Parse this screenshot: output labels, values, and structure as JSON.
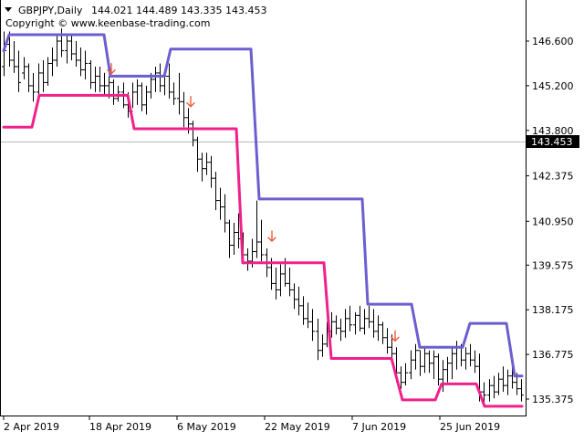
{
  "header": {
    "arrow_icon": "triangle-down-icon",
    "symbol": "GBPJPY,Daily",
    "ohlc": "144.021 144.489 143.335 143.453",
    "copyright": "Copyright © www.keenbase-trading.com"
  },
  "chart_data": {
    "type": "line",
    "y_axis": {
      "ticks": [
        146.6,
        145.2,
        143.8,
        142.375,
        140.95,
        139.575,
        138.175,
        136.775,
        135.375
      ],
      "range": [
        134.8,
        148.1
      ],
      "side": "right"
    },
    "x_axis": {
      "labels": [
        "2 Apr 2019",
        "18 Apr 2019",
        "6 May 2019",
        "22 May 2019",
        "7 Jun 2019",
        "25 Jun 2019"
      ]
    },
    "current_price": "143.453",
    "colors": {
      "upper": "#6b5fd0",
      "lower": "#f0208c",
      "arrows": "#f25a3a",
      "bars": "#000000"
    },
    "series": [
      {
        "role": "upper-channel",
        "color": "#6b5fd0",
        "points": [
          [
            4,
            146.3
          ],
          [
            10,
            146.8
          ],
          [
            62,
            146.8
          ],
          [
            114,
            146.8
          ],
          [
            121,
            145.5
          ],
          [
            180,
            145.5
          ],
          [
            187,
            146.35
          ],
          [
            275,
            146.35
          ],
          [
            284,
            141.65
          ],
          [
            397,
            141.65
          ],
          [
            403,
            138.35
          ],
          [
            451,
            138.35
          ],
          [
            460,
            137.0
          ],
          [
            507,
            137.0
          ],
          [
            515,
            137.75
          ],
          [
            555,
            137.75
          ],
          [
            564,
            136.1
          ],
          [
            572,
            136.1
          ]
        ]
      },
      {
        "role": "lower-channel",
        "color": "#f0208c",
        "points": [
          [
            4,
            143.9
          ],
          [
            35,
            143.9
          ],
          [
            43,
            144.9
          ],
          [
            140,
            144.9
          ],
          [
            147,
            143.85
          ],
          [
            259,
            143.85
          ],
          [
            266,
            139.65
          ],
          [
            355,
            139.65
          ],
          [
            363,
            136.65
          ],
          [
            429,
            136.65
          ],
          [
            441,
            135.35
          ],
          [
            477,
            135.35
          ],
          [
            484,
            135.85
          ],
          [
            522,
            135.85
          ],
          [
            531,
            135.15
          ],
          [
            572,
            135.15
          ]
        ]
      }
    ],
    "bars": [
      [
        4,
        145.5,
        146.9,
        145.8,
        146.3
      ],
      [
        10,
        145.8,
        146.9,
        146.5,
        146.0
      ],
      [
        15,
        145.6,
        146.6,
        146.0,
        145.8
      ],
      [
        20,
        145.0,
        146.3,
        145.8,
        145.3
      ],
      [
        26,
        145.4,
        146.1,
        145.6,
        145.8
      ],
      [
        31,
        145.0,
        145.9,
        145.8,
        145.2
      ],
      [
        36,
        144.7,
        145.6,
        145.2,
        145.0
      ],
      [
        42,
        144.9,
        145.9,
        145.0,
        145.6
      ],
      [
        47,
        145.0,
        146.0,
        145.6,
        145.3
      ],
      [
        52,
        145.2,
        146.1,
        145.3,
        145.9
      ],
      [
        57,
        145.5,
        146.4,
        145.9,
        146.0
      ],
      [
        62,
        145.8,
        146.8,
        146.0,
        146.6
      ],
      [
        67,
        146.1,
        147.0,
        146.6,
        146.3
      ],
      [
        73,
        145.9,
        146.8,
        146.3,
        146.6
      ],
      [
        78,
        146.0,
        146.8,
        146.6,
        146.2
      ],
      [
        83,
        145.8,
        146.6,
        146.2,
        146.0
      ],
      [
        88,
        145.5,
        146.4,
        146.0,
        145.7
      ],
      [
        93,
        145.4,
        146.3,
        145.7,
        145.9
      ],
      [
        99,
        145.1,
        146.0,
        145.9,
        145.3
      ],
      [
        104,
        145.0,
        145.8,
        145.3,
        145.5
      ],
      [
        109,
        145.0,
        145.8,
        145.5,
        145.2
      ],
      [
        114,
        144.9,
        145.6,
        145.2,
        145.2
      ],
      [
        119,
        144.8,
        145.5,
        145.2,
        145.3
      ],
      [
        124,
        144.6,
        145.4,
        145.3,
        144.8
      ],
      [
        129,
        144.7,
        145.2,
        144.8,
        145.0
      ],
      [
        135,
        144.5,
        145.3,
        145.0,
        144.6
      ],
      [
        140,
        144.2,
        145.0,
        144.6,
        144.4
      ],
      [
        145,
        144.5,
        145.3,
        144.4,
        145.0
      ],
      [
        150,
        144.6,
        145.4,
        145.0,
        145.2
      ],
      [
        155,
        144.4,
        145.3,
        145.2,
        144.6
      ],
      [
        160,
        144.3,
        145.2,
        144.6,
        145.0
      ],
      [
        165,
        144.8,
        145.6,
        145.0,
        145.4
      ],
      [
        170,
        145.0,
        145.8,
        145.4,
        145.6
      ],
      [
        175,
        145.0,
        145.9,
        145.6,
        145.2
      ],
      [
        180,
        144.9,
        145.7,
        145.2,
        145.5
      ],
      [
        185,
        144.8,
        145.9,
        145.5,
        145.0
      ],
      [
        190,
        144.6,
        145.3,
        145.0,
        144.8
      ],
      [
        196,
        144.3,
        145.6,
        144.8,
        144.7
      ],
      [
        201,
        143.9,
        145.0,
        144.7,
        144.2
      ],
      [
        206,
        143.7,
        144.5,
        144.2,
        144.0
      ],
      [
        211,
        143.3,
        144.1,
        144.0,
        143.5
      ],
      [
        216,
        142.5,
        143.6,
        143.5,
        142.9
      ],
      [
        221,
        142.2,
        143.1,
        142.9,
        142.6
      ],
      [
        226,
        142.4,
        143.1,
        142.6,
        142.8
      ],
      [
        231,
        142.0,
        143.0,
        142.8,
        142.3
      ],
      [
        236,
        141.3,
        142.5,
        142.3,
        141.6
      ],
      [
        241,
        141.0,
        142.0,
        141.6,
        141.4
      ],
      [
        246,
        140.6,
        141.8,
        141.4,
        140.9
      ],
      [
        251,
        139.8,
        141.0,
        140.9,
        140.2
      ],
      [
        256,
        139.9,
        140.9,
        140.2,
        140.6
      ],
      [
        261,
        140.1,
        141.2,
        140.6,
        140.4
      ],
      [
        266,
        139.6,
        140.6,
        140.4,
        139.9
      ],
      [
        271,
        139.4,
        140.1,
        139.9,
        139.7
      ],
      [
        276,
        139.5,
        140.4,
        139.7,
        140.0
      ],
      [
        281,
        139.8,
        141.6,
        140.0,
        140.3
      ],
      [
        286,
        139.7,
        141.0,
        140.3,
        139.9
      ],
      [
        292,
        139.2,
        140.1,
        139.9,
        139.5
      ],
      [
        297,
        138.8,
        139.8,
        139.5,
        139.0
      ],
      [
        302,
        138.5,
        139.5,
        139.0,
        138.8
      ],
      [
        307,
        138.6,
        139.6,
        138.8,
        139.3
      ],
      [
        312,
        138.9,
        139.8,
        139.3,
        139.0
      ],
      [
        317,
        138.6,
        139.5,
        139.0,
        138.8
      ],
      [
        322,
        138.2,
        139.0,
        138.8,
        138.5
      ],
      [
        327,
        138.0,
        138.9,
        138.5,
        138.3
      ],
      [
        332,
        137.7,
        138.6,
        138.3,
        137.9
      ],
      [
        337,
        137.6,
        138.4,
        137.9,
        137.8
      ],
      [
        342,
        137.2,
        138.2,
        137.8,
        137.5
      ],
      [
        348,
        136.6,
        137.9,
        137.5,
        136.9
      ],
      [
        353,
        136.7,
        137.4,
        136.9,
        137.1
      ],
      [
        358,
        137.0,
        137.8,
        137.1,
        137.5
      ],
      [
        363,
        137.3,
        138.1,
        137.5,
        137.8
      ],
      [
        368,
        137.4,
        138.0,
        137.8,
        137.6
      ],
      [
        373,
        137.2,
        137.9,
        137.6,
        137.5
      ],
      [
        378,
        137.3,
        138.2,
        137.5,
        137.9
      ],
      [
        383,
        137.5,
        138.3,
        137.9,
        137.7
      ],
      [
        389,
        137.4,
        138.1,
        137.7,
        138.0
      ],
      [
        394,
        137.5,
        138.3,
        138.0,
        137.6
      ],
      [
        399,
        137.4,
        138.2,
        137.6,
        137.9
      ],
      [
        404,
        137.6,
        138.3,
        137.9,
        137.8
      ],
      [
        409,
        137.3,
        138.2,
        137.8,
        137.5
      ],
      [
        414,
        137.2,
        138.0,
        137.5,
        137.7
      ],
      [
        419,
        137.1,
        137.8,
        137.7,
        137.3
      ],
      [
        424,
        136.8,
        137.6,
        137.3,
        137.0
      ],
      [
        429,
        136.5,
        137.4,
        137.0,
        136.8
      ],
      [
        434,
        135.9,
        137.0,
        136.8,
        136.2
      ],
      [
        439,
        135.7,
        136.4,
        136.2,
        135.9
      ],
      [
        444,
        135.8,
        136.5,
        135.9,
        136.2
      ],
      [
        450,
        136.0,
        136.9,
        136.2,
        136.6
      ],
      [
        455,
        136.3,
        137.1,
        136.6,
        136.9
      ],
      [
        460,
        136.1,
        136.9,
        136.9,
        136.4
      ],
      [
        465,
        136.2,
        137.0,
        136.4,
        136.8
      ],
      [
        470,
        136.2,
        136.9,
        136.8,
        136.5
      ],
      [
        475,
        136.0,
        136.9,
        136.5,
        136.7
      ],
      [
        480,
        135.8,
        136.8,
        136.7,
        136.0
      ],
      [
        485,
        135.6,
        136.6,
        136.0,
        136.3
      ],
      [
        490,
        135.9,
        136.7,
        136.3,
        136.5
      ],
      [
        495,
        136.0,
        137.0,
        136.5,
        136.8
      ],
      [
        500,
        136.3,
        137.2,
        136.8,
        137.0
      ],
      [
        505,
        136.4,
        137.1,
        137.0,
        136.6
      ],
      [
        510,
        136.3,
        137.0,
        136.6,
        136.8
      ],
      [
        515,
        136.4,
        137.1,
        136.8,
        136.6
      ],
      [
        520,
        136.2,
        136.9,
        136.6,
        136.4
      ],
      [
        525,
        135.3,
        136.8,
        136.4,
        135.6
      ],
      [
        530,
        135.2,
        135.9,
        135.6,
        135.5
      ],
      [
        536,
        135.3,
        136.0,
        135.5,
        135.8
      ],
      [
        541,
        135.4,
        136.1,
        135.8,
        135.6
      ],
      [
        546,
        135.5,
        136.2,
        135.6,
        136.0
      ],
      [
        551,
        135.6,
        136.4,
        136.0,
        135.8
      ],
      [
        556,
        135.5,
        136.3,
        135.8,
        136.1
      ],
      [
        561,
        135.7,
        136.4,
        136.1,
        135.9
      ],
      [
        566,
        135.5,
        136.2,
        135.9,
        135.7
      ],
      [
        571,
        135.3,
        136.0,
        135.7,
        135.5
      ]
    ],
    "arrows": [
      [
        122,
        145.72
      ],
      [
        209,
        144.69
      ],
      [
        298,
        140.47
      ],
      [
        433,
        137.34
      ]
    ]
  }
}
